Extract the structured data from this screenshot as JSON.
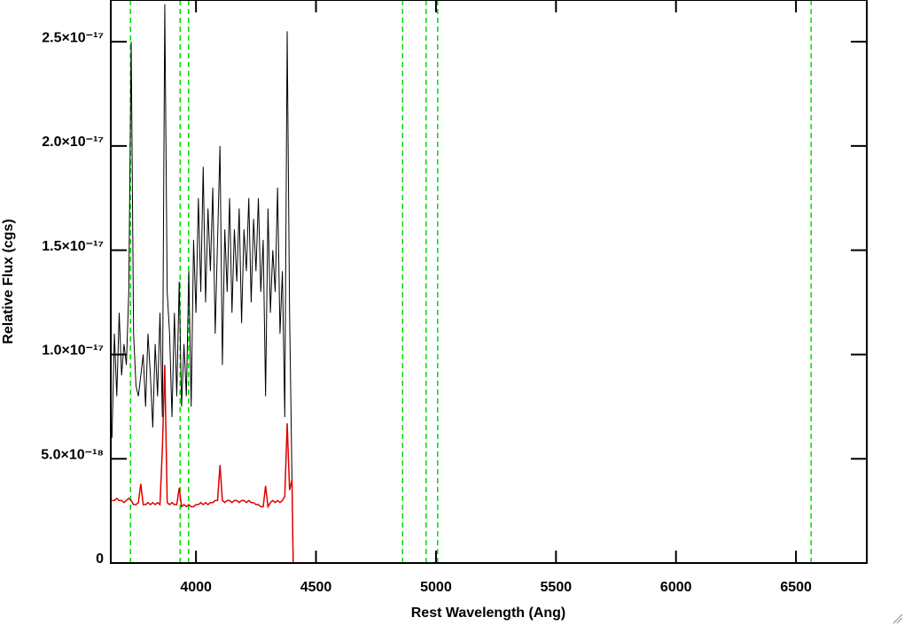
{
  "chart_data": {
    "type": "line",
    "xlabel": "Rest Wavelength (Ang)",
    "ylabel": "Relative Flux (cgs)",
    "xlim": [
      3645,
      6795
    ],
    "ylim": [
      0,
      2.7e-17
    ],
    "xticks": [
      4000,
      4500,
      5000,
      5500,
      6000,
      6500
    ],
    "yticks": [
      0,
      {
        "value": 5e-18,
        "label": "5.0×10⁻¹⁸"
      },
      {
        "value": 1e-17,
        "label": "1.0×10⁻¹⁷"
      },
      {
        "value": 1.5e-17,
        "label": "1.5×10⁻¹⁷"
      },
      {
        "value": 2e-17,
        "label": "2.0×10⁻¹⁷"
      },
      {
        "value": 2.5e-17,
        "label": "2.5×10⁻¹⁷"
      }
    ],
    "vlines": [
      3727,
      3934,
      3969,
      4861,
      4959,
      5007,
      6563
    ],
    "vline_color": "#00dd00",
    "x": [
      3650,
      3660,
      3670,
      3680,
      3690,
      3700,
      3710,
      3720,
      3730,
      3740,
      3750,
      3760,
      3770,
      3780,
      3790,
      3800,
      3810,
      3820,
      3830,
      3840,
      3850,
      3860,
      3870,
      3880,
      3890,
      3900,
      3910,
      3920,
      3930,
      3940,
      3950,
      3960,
      3970,
      3980,
      3990,
      4000,
      4010,
      4020,
      4030,
      4040,
      4050,
      4060,
      4070,
      4080,
      4090,
      4100,
      4110,
      4120,
      4130,
      4140,
      4150,
      4160,
      4170,
      4180,
      4190,
      4200,
      4210,
      4220,
      4230,
      4240,
      4250,
      4260,
      4270,
      4280,
      4290,
      4300,
      4310,
      4320,
      4330,
      4340,
      4350,
      4360,
      4370,
      4380,
      4390,
      4400,
      4405,
      6790
    ],
    "series": [
      {
        "color": "#000000",
        "values": [
          6e-18,
          1.1e-17,
          8e-18,
          1.2e-17,
          9e-18,
          1.05e-17,
          9.5e-18,
          1.3e-17,
          2.5e-17,
          1.1e-17,
          8.5e-18,
          8e-18,
          9e-18,
          1e-17,
          7.5e-18,
          1.1e-17,
          9e-18,
          6.5e-18,
          1.05e-17,
          8e-18,
          1.2e-17,
          7e-18,
          2.68e-17,
          1.3e-17,
          1.1e-17,
          7e-18,
          1.2e-17,
          8e-18,
          1.35e-17,
          7.5e-18,
          1.05e-17,
          8e-18,
          1.4e-17,
          7.5e-18,
          1.55e-17,
          1.2e-17,
          1.75e-17,
          1.3e-17,
          1.9e-17,
          1.25e-17,
          1.7e-17,
          1.4e-17,
          1.8e-17,
          1.1e-17,
          1.55e-17,
          2e-17,
          9.5e-18,
          1.6e-17,
          1.3e-17,
          1.75e-17,
          1.2e-17,
          1.6e-17,
          1.35e-17,
          1.7e-17,
          1.15e-17,
          1.6e-17,
          1.4e-17,
          1.75e-17,
          1.25e-17,
          1.65e-17,
          1.4e-17,
          1.75e-17,
          1.3e-17,
          1.55e-17,
          8e-18,
          1.7e-17,
          1.2e-17,
          1.5e-17,
          1.3e-17,
          1.8e-17,
          1.1e-17,
          1.4e-17,
          7e-18,
          2.55e-17,
          1.2e-17,
          4e-18,
          0,
          0
        ]
      },
      {
        "color": "#dd0000",
        "values": [
          3e-18,
          3e-18,
          3.1e-18,
          3e-18,
          3e-18,
          2.9e-18,
          3e-18,
          3.1e-18,
          3e-18,
          2.8e-18,
          2.8e-18,
          2.9e-18,
          3.8e-18,
          2.8e-18,
          2.8e-18,
          2.9e-18,
          2.8e-18,
          2.9e-18,
          2.8e-18,
          2.9e-18,
          2.8e-18,
          5.5e-18,
          9.5e-18,
          2.9e-18,
          2.8e-18,
          2.9e-18,
          2.8e-18,
          2.8e-18,
          3.6e-18,
          2.7e-18,
          2.8e-18,
          2.7e-18,
          2.8e-18,
          2.7e-18,
          2.7e-18,
          2.8e-18,
          2.8e-18,
          2.9e-18,
          2.8e-18,
          2.9e-18,
          2.8e-18,
          2.9e-18,
          2.9e-18,
          3e-18,
          3e-18,
          4.7e-18,
          3e-18,
          2.9e-18,
          3e-18,
          3e-18,
          2.9e-18,
          3e-18,
          3e-18,
          2.9e-18,
          3e-18,
          3e-18,
          2.9e-18,
          3e-18,
          2.9e-18,
          2.9e-18,
          2.8e-18,
          2.8e-18,
          2.7e-18,
          2.7e-18,
          3.7e-18,
          2.7e-18,
          2.9e-18,
          3e-18,
          2.9e-18,
          3e-18,
          2.9e-18,
          3e-18,
          3.2e-18,
          6.7e-18,
          3.5e-18,
          4e-18,
          0,
          0
        ]
      }
    ]
  }
}
